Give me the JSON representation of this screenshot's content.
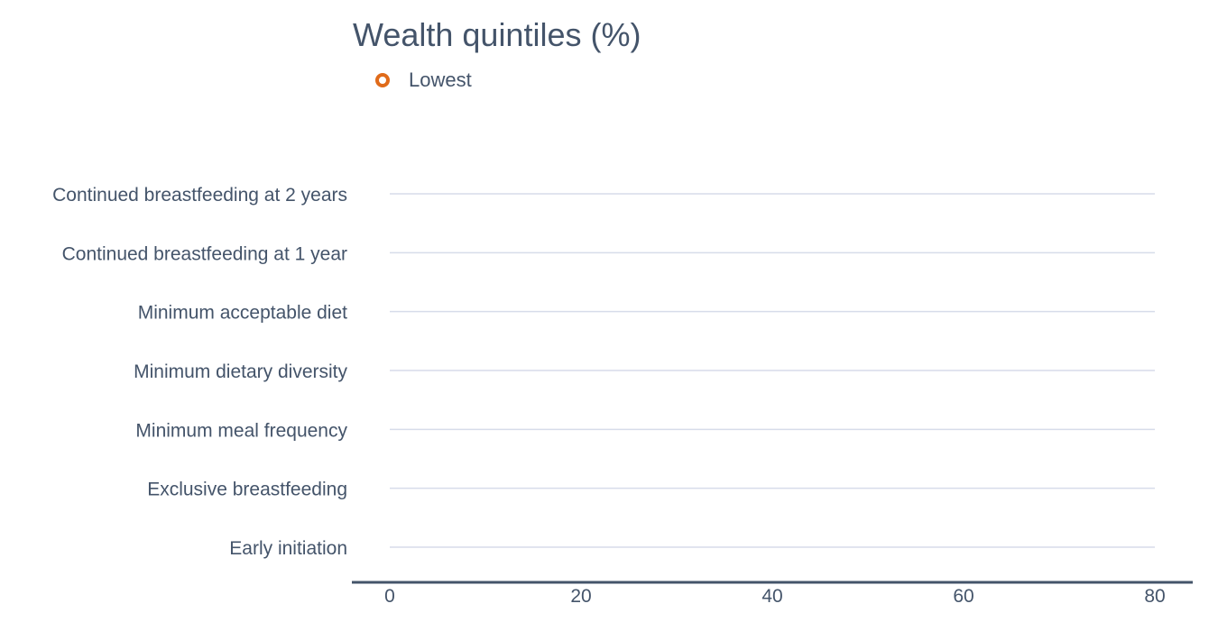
{
  "chart_data": {
    "type": "scatter",
    "title": "Wealth quintiles (%)",
    "xlabel": "",
    "ylabel": "",
    "categories": [
      "Continued breastfeeding at 2 years",
      "Continued breastfeeding at 1 year",
      "Minimum acceptable diet",
      "Minimum dietary diversity",
      "Minimum meal frequency",
      "Exclusive breastfeeding",
      "Early initiation"
    ],
    "xlim": [
      0,
      80
    ],
    "xticks": [
      0,
      20,
      40,
      60,
      80
    ],
    "series": [
      {
        "name": "Lowest",
        "color": "#e06b1a",
        "marker": "hollow-circle",
        "values": [
          null,
          null,
          null,
          null,
          null,
          null,
          null
        ]
      }
    ],
    "legend_position": "top-left",
    "grid": "horizontal category lines"
  }
}
